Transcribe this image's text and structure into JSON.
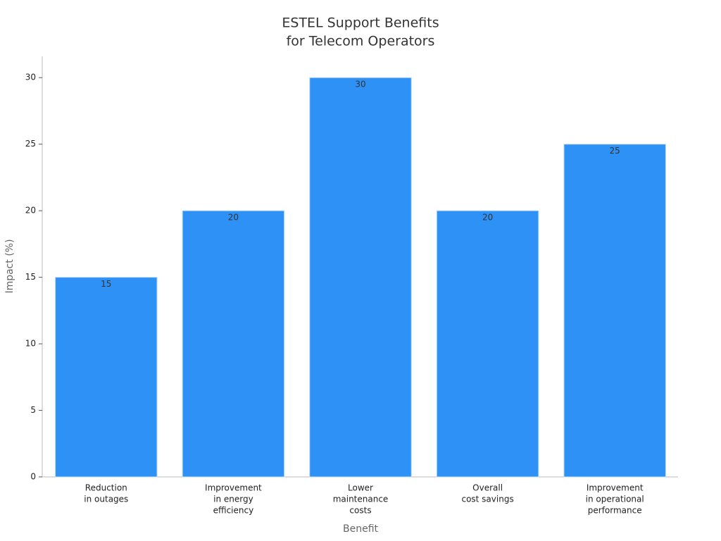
{
  "chart_data": {
    "type": "bar",
    "title": [
      "ESTEL Support Benefits",
      "for Telecom Operators"
    ],
    "x_label": "Benefit",
    "y_label": "Impact (%)",
    "categories": [
      [
        "Reduction",
        "in outages"
      ],
      [
        "Improvement",
        "in energy",
        "efficiency"
      ],
      [
        "Lower",
        "maintenance",
        "costs"
      ],
      [
        "Overall",
        "cost savings"
      ],
      [
        "Improvement",
        "in operational",
        "performance"
      ]
    ],
    "values": [
      15,
      20,
      30,
      20,
      25
    ],
    "color": "#2e91f5",
    "ylim": [
      0,
      31.6
    ],
    "yticks": [
      0,
      5,
      10,
      15,
      20,
      25,
      30
    ],
    "grid": false
  }
}
